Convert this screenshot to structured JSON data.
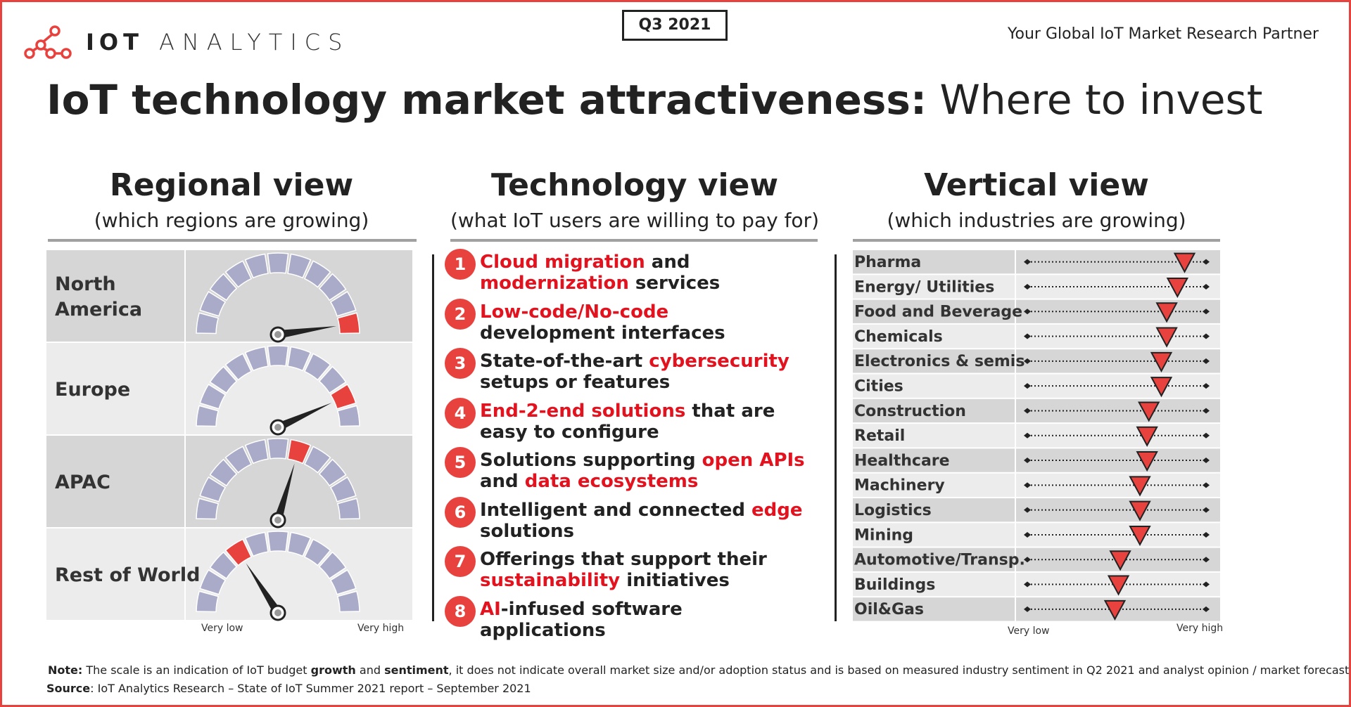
{
  "header": {
    "logo_iot": "IOT",
    "logo_analytics": "ANALYTICS",
    "badge": "Q3 2021",
    "tagline": "Your Global IoT Market Research Partner",
    "title_bold": "IoT technology market attractiveness:",
    "title_normal": "Where to invest"
  },
  "columns": {
    "regional": {
      "heading": "Regional view",
      "sub": "(which regions are growing)"
    },
    "technology": {
      "heading": "Technology view",
      "sub": "(what IoT users are willing to pay for)"
    },
    "vertical": {
      "heading": "Vertical view",
      "sub": "(which industries are growing)"
    }
  },
  "colors": {
    "accent": "#e3121f",
    "badge_red": "#e8423f",
    "gauge_segment": "#a9abc8",
    "row_dark": "#d6d6d6",
    "row_light": "#ececec"
  },
  "chart_data": [
    {
      "type": "gauge",
      "scale_min_label": "Very low",
      "scale_max_label": "Very high",
      "segments": 11,
      "regions": [
        {
          "name": "North America",
          "active_segment": 10
        },
        {
          "name": "Europe",
          "active_segment": 9
        },
        {
          "name": "APAC",
          "active_segment": 6
        },
        {
          "name": "Rest of World",
          "active_segment": 3
        }
      ]
    },
    {
      "type": "dot-scale",
      "scale_min_label": "Very low",
      "scale_max_label": "Very high",
      "value_range": [
        0,
        1
      ],
      "industries": [
        {
          "name": "Pharma",
          "value": 0.88
        },
        {
          "name": "Energy/ Utilities",
          "value": 0.84
        },
        {
          "name": "Food and Beverage",
          "value": 0.78
        },
        {
          "name": "Chemicals",
          "value": 0.78
        },
        {
          "name": "Electronics & semis",
          "value": 0.75
        },
        {
          "name": "Cities",
          "value": 0.75
        },
        {
          "name": "Construction",
          "value": 0.68
        },
        {
          "name": "Retail",
          "value": 0.67
        },
        {
          "name": "Healthcare",
          "value": 0.67
        },
        {
          "name": "Machinery",
          "value": 0.63
        },
        {
          "name": "Logistics",
          "value": 0.63
        },
        {
          "name": "Mining",
          "value": 0.63
        },
        {
          "name": "Automotive/Transp.",
          "value": 0.52
        },
        {
          "name": "Buildings",
          "value": 0.51
        },
        {
          "name": "Oil&Gas",
          "value": 0.49
        }
      ]
    }
  ],
  "technology": [
    {
      "num": "1",
      "parts": [
        {
          "t": "Cloud migration",
          "hl": true
        },
        {
          "t": " and ",
          "hl": false
        },
        {
          "t": "modernization",
          "hl": true
        },
        {
          "t": " services",
          "hl": false
        }
      ]
    },
    {
      "num": "2",
      "parts": [
        {
          "t": "Low-code/No-code",
          "hl": true
        },
        {
          "t": " development interfaces",
          "hl": false
        }
      ]
    },
    {
      "num": "3",
      "parts": [
        {
          "t": "State-of-the-art ",
          "hl": false
        },
        {
          "t": "cybersecurity",
          "hl": true
        },
        {
          "t": " setups or features",
          "hl": false
        }
      ]
    },
    {
      "num": "4",
      "parts": [
        {
          "t": "End-2-end solutions",
          "hl": true
        },
        {
          "t": " that are easy to configure",
          "hl": false
        }
      ]
    },
    {
      "num": "5",
      "parts": [
        {
          "t": "Solutions supporting ",
          "hl": false
        },
        {
          "t": "open APIs",
          "hl": true
        },
        {
          "t": " and ",
          "hl": false
        },
        {
          "t": "data ecosystems",
          "hl": true
        }
      ]
    },
    {
      "num": "6",
      "parts": [
        {
          "t": "Intelligent and connected ",
          "hl": false
        },
        {
          "t": "edge",
          "hl": true
        },
        {
          "t": " solutions",
          "hl": false
        }
      ]
    },
    {
      "num": "7",
      "parts": [
        {
          "t": "Offerings that support their ",
          "hl": false
        },
        {
          "t": "sustainability",
          "hl": true
        },
        {
          "t": " initiatives",
          "hl": false
        }
      ]
    },
    {
      "num": "8",
      "parts": [
        {
          "t": "AI",
          "hl": true
        },
        {
          "t": "-infused software applications",
          "hl": false
        }
      ]
    }
  ],
  "footer": {
    "note_label": "Note:",
    "note_1": " The scale is an indication of IoT budget ",
    "note_growth": "growth",
    "note_2": " and ",
    "note_sentiment": "sentiment",
    "note_3": ", it does not indicate overall market size and/or adoption status and is based on measured industry sentiment in Q2 2021 and analyst opinion / market forecast",
    "source_label": "Source",
    "source_text": ": IoT Analytics Research  – State of IoT Summer 2021 report – September 2021"
  }
}
